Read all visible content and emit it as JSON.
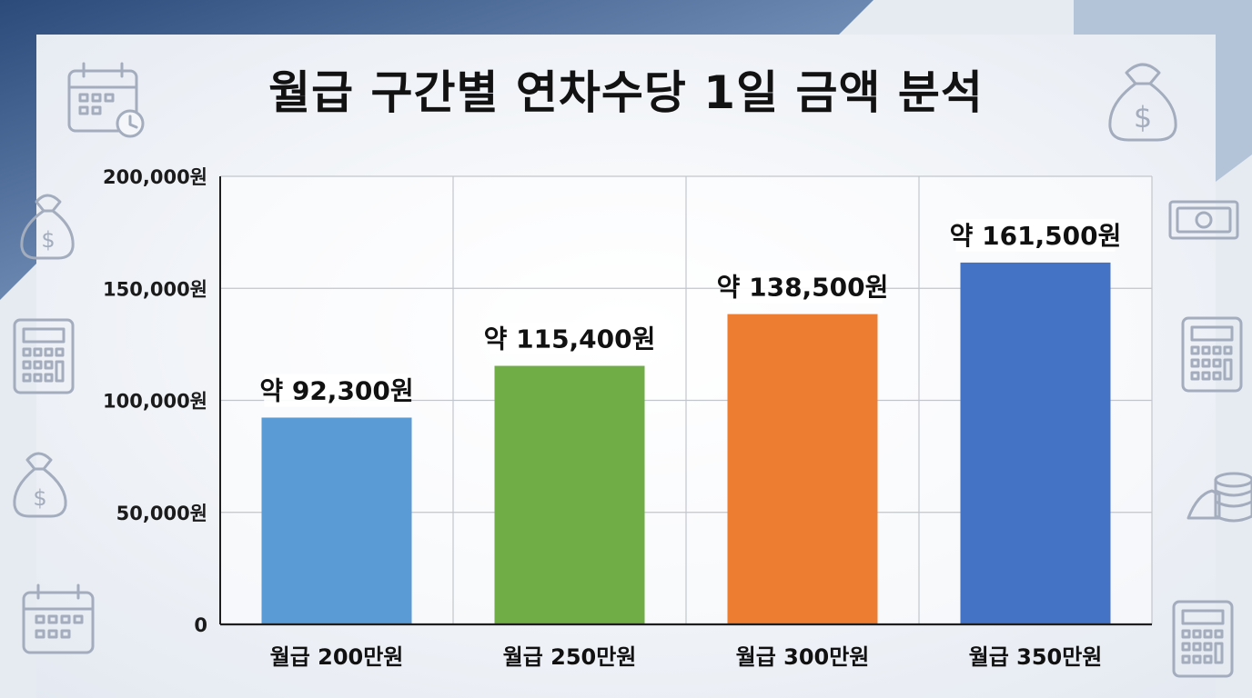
{
  "title": "월급 구간별 연차수당 1일 금액 분석",
  "decor_icons": [
    "calendar-icon",
    "money-bag-icon",
    "calculator-icon",
    "banknote-icon",
    "coin-stack-icon"
  ],
  "colors": {
    "background_panel": "#f5f7fb",
    "corner_accent": "#2f4e7f",
    "grid": "#c2c6cc",
    "axis": "#1e1e1e",
    "icon": "#a3adbd"
  },
  "chart_data": {
    "type": "bar",
    "title": "월급 구간별 연차수당 1일 금액 분석",
    "categories": [
      "월급 200만원",
      "월급 250만원",
      "월급 300만원",
      "월급 350만원"
    ],
    "values": [
      92300,
      115400,
      138500,
      161500
    ],
    "data_labels": [
      "약 92,300원",
      "약 115,400원",
      "약 138,500원",
      "약 161,500원"
    ],
    "bar_colors": [
      "#5b9bd5",
      "#70ad47",
      "#ed7d31",
      "#4472c4"
    ],
    "y_ticks": [
      0,
      50000,
      100000,
      150000,
      200000
    ],
    "y_tick_labels": [
      "0",
      "50,000원",
      "100,000원",
      "150,000원",
      "200,000원"
    ],
    "ylim": [
      0,
      200000
    ],
    "xlabel": "",
    "ylabel": "",
    "grid": true,
    "legend": "none"
  }
}
